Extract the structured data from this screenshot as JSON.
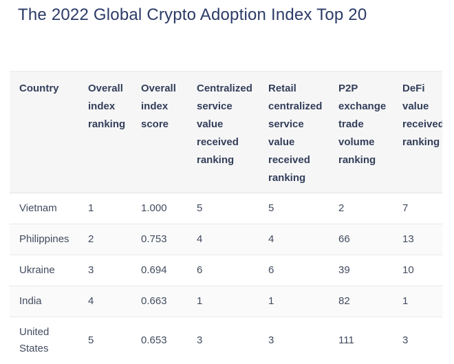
{
  "page": {
    "title": "The 2022 Global Crypto Adoption Index Top 20"
  },
  "colors": {
    "title_text": "#2b3a67",
    "header_text": "#333e59",
    "body_text": "#414b5e",
    "header_background": "#f6f6f7",
    "alternate_row_background": "#fafafa",
    "divider": "#e8e8eb",
    "page_background": "#ffffff"
  },
  "table": {
    "columns": [
      "Country",
      "Overall index ranking",
      "Overall index score",
      "Centralized service value received ranking",
      "Retail centralized service value received ranking",
      "P2P exchange trade volume ranking",
      "DeFi value received ranking"
    ],
    "rows": [
      [
        "Vietnam",
        "1",
        "1.000",
        "5",
        "5",
        "2",
        "7"
      ],
      [
        "Philippines",
        "2",
        "0.753",
        "4",
        "4",
        "66",
        "13"
      ],
      [
        "Ukraine",
        "3",
        "0.694",
        "6",
        "6",
        "39",
        "10"
      ],
      [
        "India",
        "4",
        "0.663",
        "1",
        "1",
        "82",
        "1"
      ],
      [
        "United States",
        "5",
        "0.653",
        "3",
        "3",
        "111",
        "3"
      ]
    ]
  }
}
